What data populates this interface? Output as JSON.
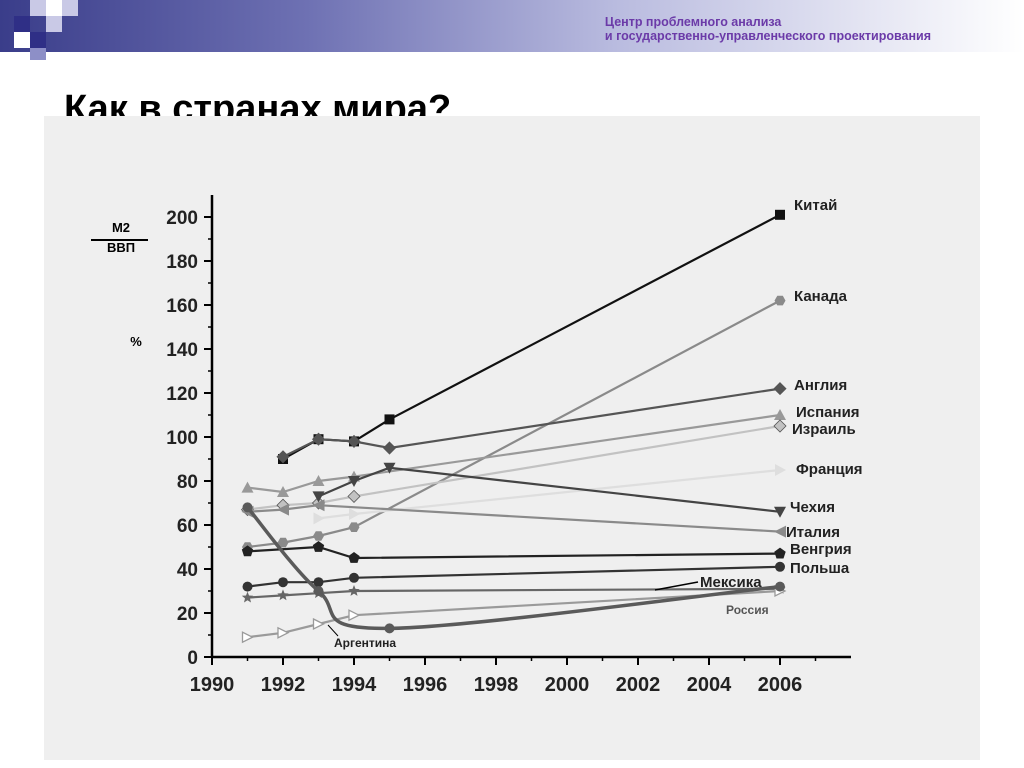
{
  "header": {
    "org_line1": "Центр проблемного анализа",
    "org_line2": "и государственно-управленческого проектирования"
  },
  "slide": {
    "title": "Как в странах мира?"
  },
  "chart_data": {
    "type": "line",
    "title": "",
    "ylabel_numerator": "M2",
    "ylabel_denominator": "ВВП",
    "ylabel_unit": "%",
    "xlabel": "",
    "xlim": [
      1990,
      2008
    ],
    "ylim": [
      0,
      210
    ],
    "x_ticks": [
      1990,
      1992,
      1994,
      1996,
      1998,
      2000,
      2002,
      2004,
      2006
    ],
    "y_ticks": [
      0,
      20,
      40,
      60,
      80,
      100,
      120,
      140,
      160,
      180,
      200
    ],
    "grid": false,
    "series": [
      {
        "name": "Китай",
        "color": "#111111",
        "marker": "square",
        "points": [
          [
            1992,
            90
          ],
          [
            1993,
            99
          ],
          [
            1994,
            98
          ],
          [
            1995,
            108
          ],
          [
            2006,
            201
          ]
        ]
      },
      {
        "name": "Канада",
        "color": "#8a8a8a",
        "marker": "hexagon",
        "points": [
          [
            1991,
            50
          ],
          [
            1992,
            52
          ],
          [
            1993,
            55
          ],
          [
            1994,
            59
          ],
          [
            2006,
            162
          ]
        ]
      },
      {
        "name": "Англия",
        "color": "#555555",
        "marker": "diamond",
        "points": [
          [
            1992,
            91
          ],
          [
            1993,
            99
          ],
          [
            1994,
            98
          ],
          [
            1995,
            95
          ],
          [
            2006,
            122
          ]
        ]
      },
      {
        "name": "Испания",
        "color": "#999999",
        "marker": "triangle-up",
        "points": [
          [
            1991,
            77
          ],
          [
            1992,
            75
          ],
          [
            1993,
            80
          ],
          [
            1994,
            82
          ],
          [
            2006,
            110
          ]
        ]
      },
      {
        "name": "Израиль",
        "color": "#c2c2c2",
        "marker": "diamond",
        "points": [
          [
            1991,
            67
          ],
          [
            1992,
            69
          ],
          [
            1993,
            70
          ],
          [
            1994,
            73
          ],
          [
            2006,
            105
          ]
        ]
      },
      {
        "name": "Франция",
        "color": "#dedede",
        "marker": "triangle-right",
        "points": [
          [
            1993,
            63
          ],
          [
            1994,
            65
          ],
          [
            2006,
            85
          ]
        ]
      },
      {
        "name": "Чехия",
        "color": "#444444",
        "marker": "triangle-down",
        "points": [
          [
            1993,
            73
          ],
          [
            1994,
            80
          ],
          [
            1995,
            86
          ],
          [
            2006,
            66
          ]
        ]
      },
      {
        "name": "Италия",
        "color": "#8a8a8a",
        "marker": "triangle-left",
        "points": [
          [
            1991,
            66
          ],
          [
            1992,
            67
          ],
          [
            1993,
            69
          ],
          [
            2006,
            57
          ]
        ]
      },
      {
        "name": "Венгрия",
        "color": "#222222",
        "marker": "pentagon",
        "points": [
          [
            1991,
            48
          ],
          [
            1993,
            50
          ],
          [
            1994,
            45
          ],
          [
            2006,
            47
          ]
        ]
      },
      {
        "name": "Польша",
        "color": "#333333",
        "marker": "circle",
        "points": [
          [
            1991,
            32
          ],
          [
            1992,
            34
          ],
          [
            1993,
            34
          ],
          [
            1994,
            36
          ],
          [
            2006,
            41
          ]
        ]
      },
      {
        "name": "Мексика",
        "color": "#666666",
        "marker": "star",
        "points": [
          [
            1991,
            27
          ],
          [
            1992,
            28
          ],
          [
            1993,
            29
          ],
          [
            1994,
            30
          ],
          [
            2006,
            31
          ]
        ]
      },
      {
        "name": "Россия",
        "color": "#9a9a9a",
        "marker": "triangle-right-open",
        "points": [
          [
            1991,
            9
          ],
          [
            1992,
            11
          ],
          [
            1993,
            15
          ],
          [
            1994,
            19
          ],
          [
            2006,
            30
          ]
        ]
      },
      {
        "name": "Аргентина",
        "color": "#5a5a5a",
        "marker": "circle",
        "curve": true,
        "points": [
          [
            1991,
            68
          ],
          [
            1993,
            30
          ],
          [
            1995,
            13
          ],
          [
            2006,
            32
          ]
        ]
      }
    ]
  }
}
